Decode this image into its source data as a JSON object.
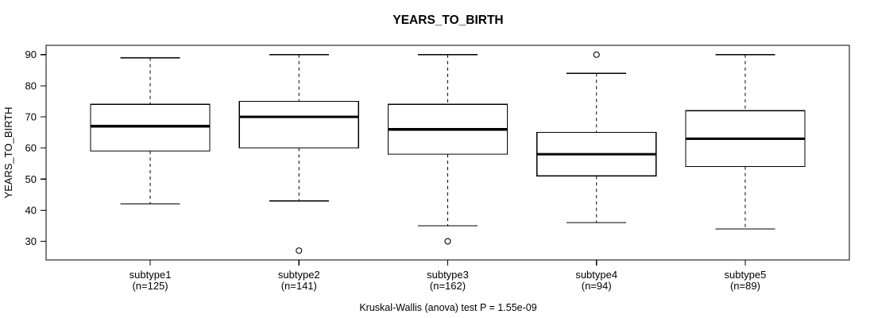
{
  "figure": {
    "title": "YEARS_TO_BIRTH",
    "caption": "Kruskal-Wallis (anova) test P = 1.55e-09"
  },
  "chart_data": {
    "type": "boxplot",
    "title": "YEARS_TO_BIRTH",
    "xlabel": "",
    "ylabel": "YEARS_TO_BIRTH",
    "ylim": [
      24,
      93
    ],
    "yticks": [
      30,
      40,
      50,
      60,
      70,
      80,
      90
    ],
    "grid": false,
    "legend": "none",
    "caption": "Kruskal-Wallis (anova) test P = 1.55e-09",
    "line_color": "#000000",
    "box_fill": "#ffffff",
    "background": "#ffffff",
    "groups": [
      {
        "label": "subtype1",
        "n_label": "(n=125)",
        "n": 125,
        "whisker_low": 42,
        "q1": 59,
        "median": 67,
        "q3": 74,
        "whisker_high": 89,
        "outliers": []
      },
      {
        "label": "subtype2",
        "n_label": "(n=141)",
        "n": 141,
        "whisker_low": 43,
        "q1": 60,
        "median": 70,
        "q3": 75,
        "whisker_high": 90,
        "outliers": [
          27
        ]
      },
      {
        "label": "subtype3",
        "n_label": "(n=162)",
        "n": 162,
        "whisker_low": 35,
        "q1": 58,
        "median": 66,
        "q3": 74,
        "whisker_high": 90,
        "outliers": [
          30
        ]
      },
      {
        "label": "subtype4",
        "n_label": "(n=94)",
        "n": 94,
        "whisker_low": 36,
        "q1": 51,
        "median": 58,
        "q3": 65,
        "whisker_high": 84,
        "outliers": [
          90
        ]
      },
      {
        "label": "subtype5",
        "n_label": "(n=89)",
        "n": 89,
        "whisker_low": 34,
        "q1": 54,
        "median": 63,
        "q3": 72,
        "whisker_high": 90,
        "outliers": []
      }
    ]
  }
}
